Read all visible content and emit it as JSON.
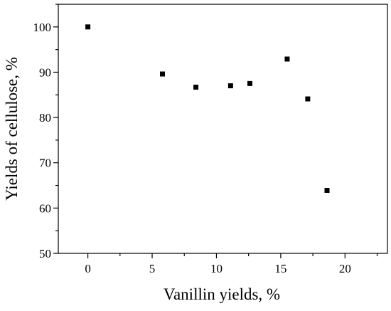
{
  "chart_data": {
    "type": "scatter",
    "xlabel": "Vanillin yields, %",
    "ylabel": "Yields of cellulose, %",
    "xlim": [
      -2.3,
      23.3
    ],
    "ylim": [
      50,
      105
    ],
    "xticks": [
      0,
      5,
      10,
      15,
      20
    ],
    "yticks": [
      50,
      60,
      70,
      80,
      90,
      100
    ],
    "grid": false,
    "marker": "square",
    "marker_color": "#000000",
    "points": [
      {
        "x": 0,
        "y": 100
      },
      {
        "x": 5.8,
        "y": 89.6
      },
      {
        "x": 8.4,
        "y": 86.7
      },
      {
        "x": 11.1,
        "y": 87.0
      },
      {
        "x": 12.6,
        "y": 87.5
      },
      {
        "x": 15.5,
        "y": 92.9
      },
      {
        "x": 17.1,
        "y": 84.1
      },
      {
        "x": 18.6,
        "y": 63.9
      }
    ]
  }
}
